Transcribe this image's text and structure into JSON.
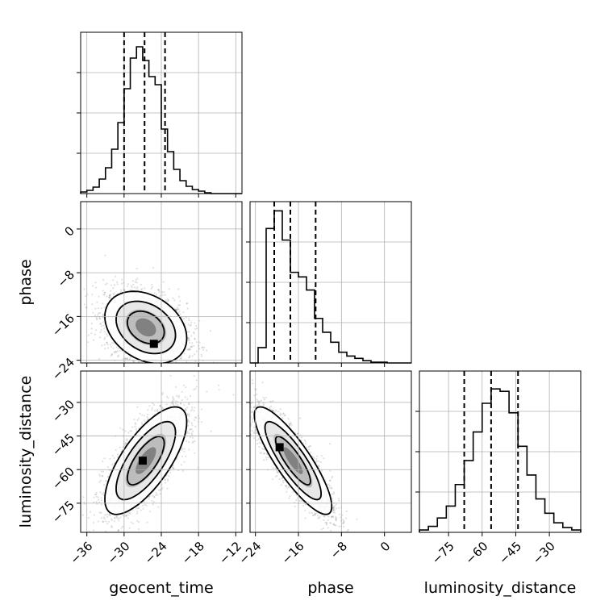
{
  "chart_data": {
    "type": "corner",
    "parameters": [
      "geocent_time",
      "phase",
      "luminosity_distance"
    ],
    "grid": true,
    "marginals": [
      {
        "parameter": "geocent_time",
        "xlim": [
          -37,
          -11
        ],
        "xticks": [
          "−36",
          "−30",
          "−24",
          "−18",
          "−12"
        ],
        "xtick_values": [
          -36,
          -30,
          -24,
          -18,
          -12
        ],
        "bin_edges": [
          -37,
          -36,
          -35,
          -34,
          -33,
          -32,
          -31,
          -30,
          -29,
          -28,
          -27,
          -26,
          -25,
          -24,
          -23,
          -22,
          -21,
          -20,
          -19,
          -18,
          -17,
          -16,
          -15,
          -14,
          -13,
          -12,
          -11
        ],
        "counts": [
          2,
          4,
          8,
          18,
          32,
          55,
          88,
          130,
          168,
          182,
          165,
          145,
          135,
          80,
          52,
          30,
          16,
          9,
          5,
          3,
          1,
          0,
          0,
          0,
          0,
          0
        ],
        "ymax": 200,
        "quantiles": [
          -30.0,
          -26.7,
          -23.4
        ]
      },
      {
        "parameter": "phase",
        "xlim": [
          -25,
          5
        ],
        "xticks": [
          "−24",
          "−16",
          "−8",
          "0"
        ],
        "xtick_values": [
          -24,
          -16,
          -8,
          0
        ],
        "bin_edges": [
          -25,
          -23.5,
          -22,
          -20.5,
          -19,
          -17.5,
          -16,
          -14.5,
          -13,
          -11.5,
          -10,
          -8.5,
          -7,
          -5.5,
          -4,
          -2.5,
          -1,
          0.5,
          2,
          3.5,
          5
        ],
        "counts": [
          0,
          20,
          175,
          198,
          160,
          118,
          112,
          95,
          58,
          40,
          27,
          14,
          9,
          6,
          3,
          1,
          1,
          0,
          0,
          0
        ],
        "ymax": 210,
        "quantiles": [
          -20.5,
          -17.5,
          -12.8
        ]
      },
      {
        "parameter": "luminosity_distance",
        "xlim": [
          -88,
          -16
        ],
        "xticks": [
          "−75",
          "−60",
          "−45",
          "−30"
        ],
        "xtick_values": [
          -75,
          -60,
          -45,
          -30
        ],
        "bin_edges": [
          -88,
          -84,
          -80,
          -76,
          -72,
          -68,
          -64,
          -60,
          -56,
          -52,
          -48,
          -44,
          -40,
          -36,
          -32,
          -28,
          -24,
          -20,
          -16
        ],
        "counts": [
          2,
          5,
          12,
          22,
          40,
          60,
          84,
          108,
          120,
          118,
          100,
          72,
          48,
          28,
          16,
          8,
          4,
          2
        ],
        "ymax": 135,
        "quantiles": [
          -68.0,
          -56.0,
          -44.0
        ]
      }
    ],
    "joint": [
      {
        "x_parameter": "geocent_time",
        "y_parameter": "phase",
        "xlim": [
          -37,
          -11
        ],
        "ylim": [
          -24.5,
          5
        ],
        "yticks": [
          "−24",
          "−16",
          "−8",
          "0"
        ],
        "ytick_values": [
          -24,
          -16,
          -8,
          0
        ],
        "mean": [
          -26.5,
          -18.0
        ],
        "std": [
          3.3,
          3.3
        ],
        "corr": -0.3,
        "peak": [
          -25.2,
          -21.0
        ]
      },
      {
        "x_parameter": "geocent_time",
        "y_parameter": "luminosity_distance",
        "xlim": [
          -37,
          -11
        ],
        "ylim": [
          -88,
          -16
        ],
        "yticks": [
          "−75",
          "−60",
          "−45",
          "−30"
        ],
        "ytick_values": [
          -75,
          -60,
          -45,
          -30
        ],
        "mean": [
          -26.5,
          -56.0
        ],
        "std": [
          3.3,
          12.0
        ],
        "corr": 0.72,
        "peak": [
          -27.0,
          -56.0
        ]
      },
      {
        "x_parameter": "phase",
        "y_parameter": "luminosity_distance",
        "xlim": [
          -25,
          5
        ],
        "ylim": [
          -88,
          -16
        ],
        "mean": [
          -17.0,
          -56.0
        ],
        "std": [
          3.6,
          12.0
        ],
        "corr": -0.85,
        "peak": [
          -19.5,
          -50.0
        ]
      }
    ]
  }
}
